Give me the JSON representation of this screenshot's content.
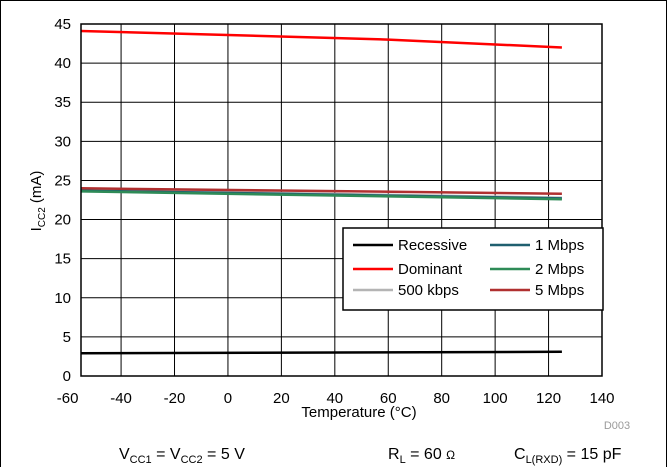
{
  "chart_data": {
    "type": "line",
    "title": "",
    "xlabel": "Temperature (°C)",
    "ylabel": "ICC2 (mA)",
    "ylabel_main": "I",
    "ylabel_sub": "CC2",
    "ylabel_rest": " (mA)",
    "xlim": [
      -55,
      140
    ],
    "ylim": [
      0,
      45
    ],
    "xticks": [
      -60,
      -40,
      -20,
      0,
      20,
      40,
      60,
      80,
      100,
      120,
      140
    ],
    "yticks": [
      0,
      5,
      10,
      15,
      20,
      25,
      30,
      35,
      40,
      45
    ],
    "grid": true,
    "legend_position": "right",
    "series": [
      {
        "name": "Recessive",
        "color": "#000000",
        "x": [
          -55,
          125
        ],
        "y": [
          2.9,
          3.1
        ]
      },
      {
        "name": "Dominant",
        "color": "#ff0000",
        "x": [
          -55,
          0,
          60,
          125
        ],
        "y": [
          44.1,
          43.6,
          43.0,
          42.0
        ]
      },
      {
        "name": "500 kbps",
        "color": "#b4b4b4",
        "x": [
          -55,
          125
        ],
        "y": [
          23.8,
          22.8
        ]
      },
      {
        "name": "1 Mbps",
        "color": "#1f5f6f",
        "x": [
          -55,
          125
        ],
        "y": [
          23.7,
          22.7
        ]
      },
      {
        "name": "2 Mbps",
        "color": "#2e8b57",
        "x": [
          -55,
          125
        ],
        "y": [
          23.6,
          22.6
        ]
      },
      {
        "name": "5 Mbps",
        "color": "#b03030",
        "x": [
          -55,
          125
        ],
        "y": [
          24.0,
          23.3
        ]
      }
    ],
    "annotation": "D003"
  },
  "conditions": {
    "vcc": {
      "a": "V",
      "a_sub": "CC1",
      "b": " = V",
      "b_sub": "CC2",
      "c": " = 5 V"
    },
    "rl": {
      "a": "R",
      "a_sub": "L",
      "b": " = 60 ",
      "unit": "Ω"
    },
    "cl": {
      "a": "C",
      "a_sub": "L(RXD)",
      "b": " = 15 pF"
    }
  }
}
